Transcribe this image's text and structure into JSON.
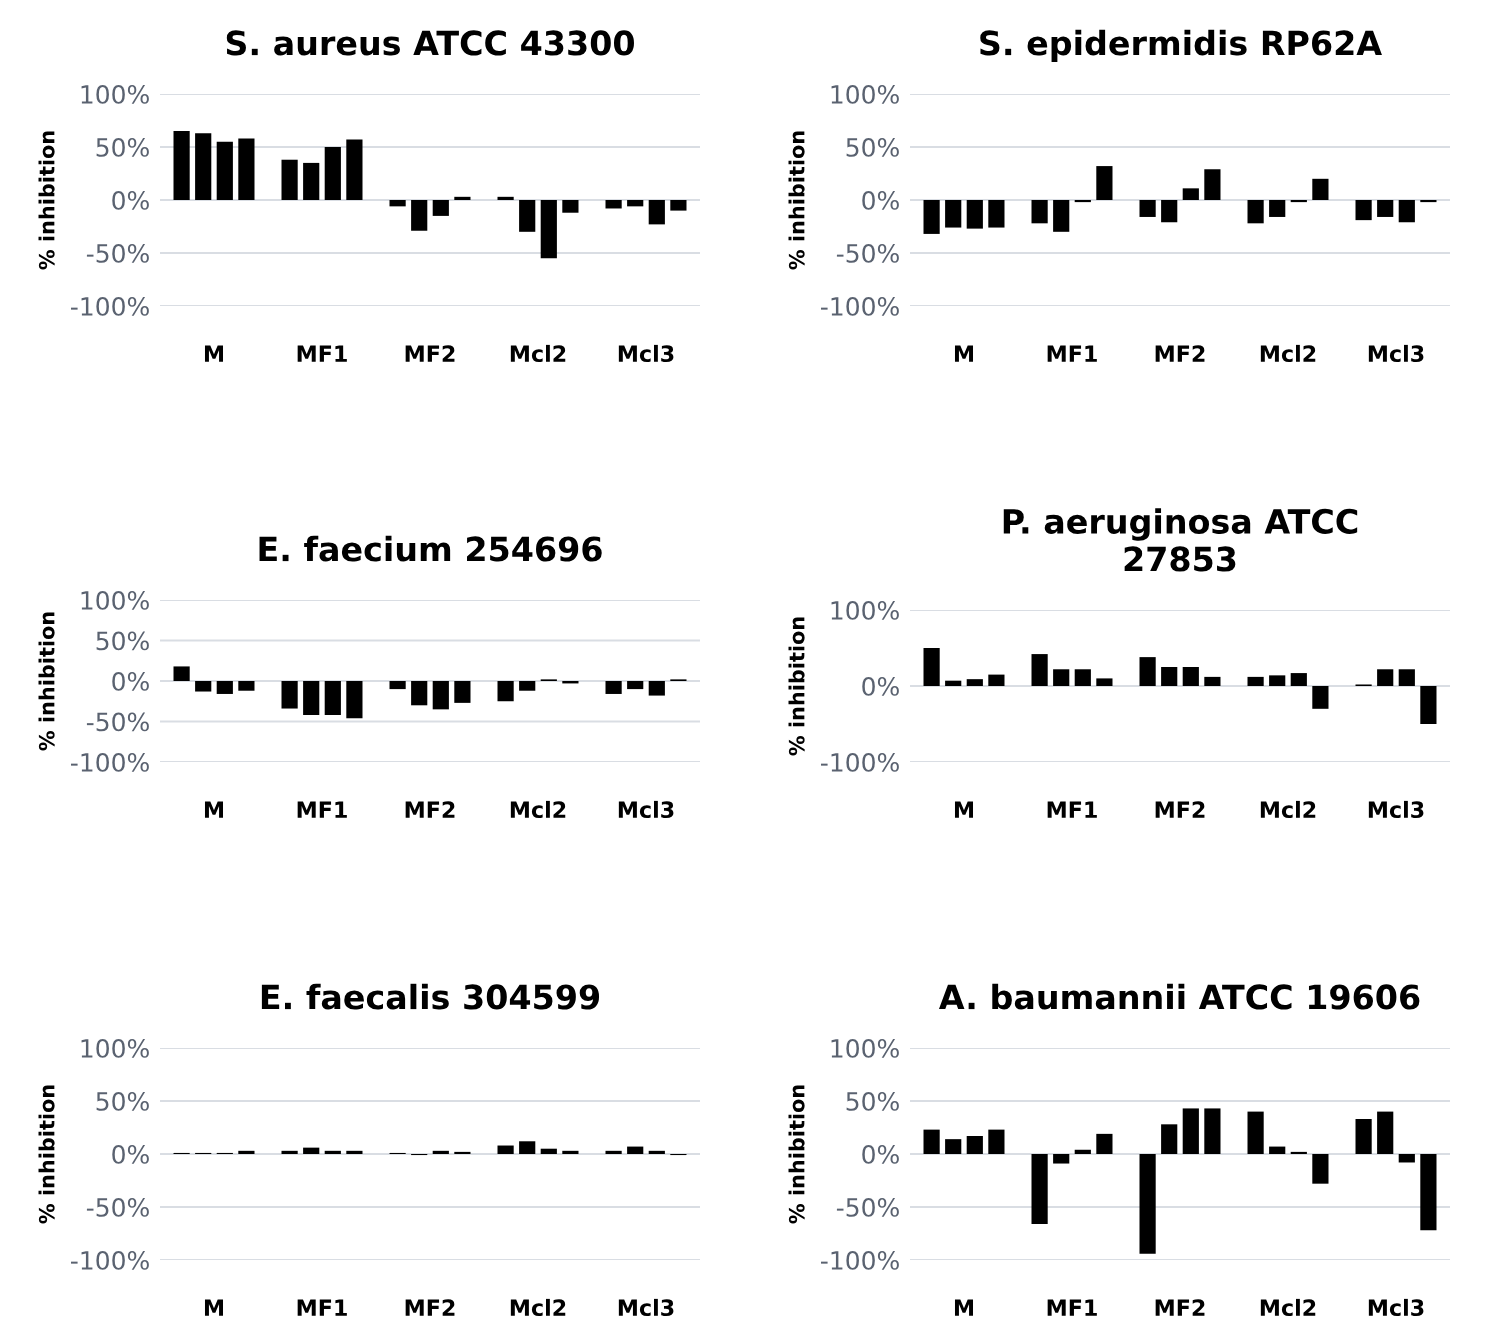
{
  "chart_data": [
    {
      "type": "bar",
      "title": "S. aureus ATCC 43300",
      "ylabel": "% inhibition",
      "categories": [
        "M",
        "MF1",
        "MF2",
        "Mcl2",
        "Mcl3"
      ],
      "ylim": [
        -100,
        100
      ],
      "yticks": [
        {
          "value": -100,
          "label": "-100%"
        },
        {
          "value": -50,
          "label": "-50%"
        },
        {
          "value": 0,
          "label": "0%"
        },
        {
          "value": 50,
          "label": "50%"
        },
        {
          "value": 100,
          "label": "100%"
        }
      ],
      "grid": "y",
      "series": [
        {
          "color": "#000000",
          "values": [
            65,
            38,
            -6,
            3,
            -8
          ]
        },
        {
          "color": "#000000",
          "values": [
            63,
            35,
            -29,
            -30,
            -6
          ]
        },
        {
          "color": "#000000",
          "values": [
            55,
            50,
            -15,
            -55,
            -23
          ]
        },
        {
          "color": "#000000",
          "values": [
            58,
            57,
            3,
            -12,
            -10
          ]
        }
      ]
    },
    {
      "type": "bar",
      "title": "S. epidermidis RP62A",
      "ylabel": "% inhibition",
      "categories": [
        "M",
        "MF1",
        "MF2",
        "Mcl2",
        "Mcl3"
      ],
      "ylim": [
        -100,
        100
      ],
      "yticks": [
        {
          "value": -100,
          "label": "-100%"
        },
        {
          "value": -50,
          "label": "-50%"
        },
        {
          "value": 0,
          "label": "0%"
        },
        {
          "value": 50,
          "label": "50%"
        },
        {
          "value": 100,
          "label": "100%"
        }
      ],
      "grid": "y",
      "series": [
        {
          "color": "#000000",
          "values": [
            -32,
            -22,
            -16,
            -22,
            -19
          ]
        },
        {
          "color": "#000000",
          "values": [
            -26,
            -30,
            -21,
            -16,
            -16
          ]
        },
        {
          "color": "#000000",
          "values": [
            -27,
            -2,
            11,
            -2,
            -21
          ]
        },
        {
          "color": "#000000",
          "values": [
            -26,
            32,
            29,
            20,
            -2
          ]
        }
      ]
    },
    {
      "type": "bar",
      "title": "E. faecium 254696",
      "ylabel": "% inhibition",
      "categories": [
        "M",
        "MF1",
        "MF2",
        "Mcl2",
        "Mcl3"
      ],
      "ylim": [
        -100,
        100
      ],
      "yticks": [
        {
          "value": -100,
          "label": "-100%"
        },
        {
          "value": -50,
          "label": "-50%"
        },
        {
          "value": 0,
          "label": "0%"
        },
        {
          "value": 50,
          "label": "50%"
        },
        {
          "value": 100,
          "label": "100%"
        }
      ],
      "grid": "y",
      "series": [
        {
          "color": "#000000",
          "values": [
            18,
            -34,
            -10,
            -25,
            -16
          ]
        },
        {
          "color": "#000000",
          "values": [
            -13,
            -42,
            -30,
            -12,
            -10
          ]
        },
        {
          "color": "#000000",
          "values": [
            -16,
            -42,
            -35,
            2,
            -18
          ]
        },
        {
          "color": "#000000",
          "values": [
            -12,
            -46,
            -27,
            -3,
            2
          ]
        }
      ]
    },
    {
      "type": "bar",
      "title": "P. aeruginosa ATCC\n27853",
      "ylabel": "% inhibition",
      "categories": [
        "M",
        "MF1",
        "MF2",
        "Mcl2",
        "Mcl3"
      ],
      "ylim": [
        -100,
        100
      ],
      "yticks": [
        {
          "value": -100,
          "label": "-100%"
        },
        {
          "value": 0,
          "label": "0%"
        },
        {
          "value": 100,
          "label": "100%"
        }
      ],
      "grid": "y",
      "series": [
        {
          "color": "#000000",
          "values": [
            50,
            42,
            38,
            12,
            2
          ]
        },
        {
          "color": "#000000",
          "values": [
            7,
            22,
            25,
            14,
            22
          ]
        },
        {
          "color": "#000000",
          "values": [
            9,
            22,
            25,
            17,
            22
          ]
        },
        {
          "color": "#000000",
          "values": [
            15,
            10,
            12,
            -30,
            -50
          ]
        }
      ]
    },
    {
      "type": "bar",
      "title": "E. faecalis 304599",
      "ylabel": "% inhibition",
      "categories": [
        "M",
        "MF1",
        "MF2",
        "Mcl2",
        "Mcl3"
      ],
      "ylim": [
        -100,
        100
      ],
      "yticks": [
        {
          "value": -100,
          "label": "-100%"
        },
        {
          "value": -50,
          "label": "-50%"
        },
        {
          "value": 0,
          "label": "0%"
        },
        {
          "value": 50,
          "label": "50%"
        },
        {
          "value": 100,
          "label": "100%"
        }
      ],
      "grid": "y",
      "series": [
        {
          "color": "#000000",
          "values": [
            1,
            3,
            1,
            8,
            3
          ]
        },
        {
          "color": "#000000",
          "values": [
            1,
            6,
            -1,
            12,
            7
          ]
        },
        {
          "color": "#000000",
          "values": [
            1,
            3,
            3,
            5,
            3
          ]
        },
        {
          "color": "#000000",
          "values": [
            3,
            3,
            2,
            3,
            -1
          ]
        }
      ]
    },
    {
      "type": "bar",
      "title": "A. baumannii ATCC 19606",
      "ylabel": "% inhibition",
      "categories": [
        "M",
        "MF1",
        "MF2",
        "Mcl2",
        "Mcl3"
      ],
      "ylim": [
        -100,
        100
      ],
      "yticks": [
        {
          "value": -100,
          "label": "-100%"
        },
        {
          "value": -50,
          "label": "-50%"
        },
        {
          "value": 0,
          "label": "0%"
        },
        {
          "value": 50,
          "label": "50%"
        },
        {
          "value": 100,
          "label": "100%"
        }
      ],
      "grid": "y",
      "series": [
        {
          "color": "#000000",
          "values": [
            23,
            -66,
            -94,
            40,
            33
          ]
        },
        {
          "color": "#000000",
          "values": [
            14,
            -9,
            28,
            7,
            40
          ]
        },
        {
          "color": "#000000",
          "values": [
            17,
            4,
            43,
            2,
            -8
          ]
        },
        {
          "color": "#000000",
          "values": [
            23,
            19,
            43,
            -28,
            -72
          ]
        }
      ]
    }
  ]
}
